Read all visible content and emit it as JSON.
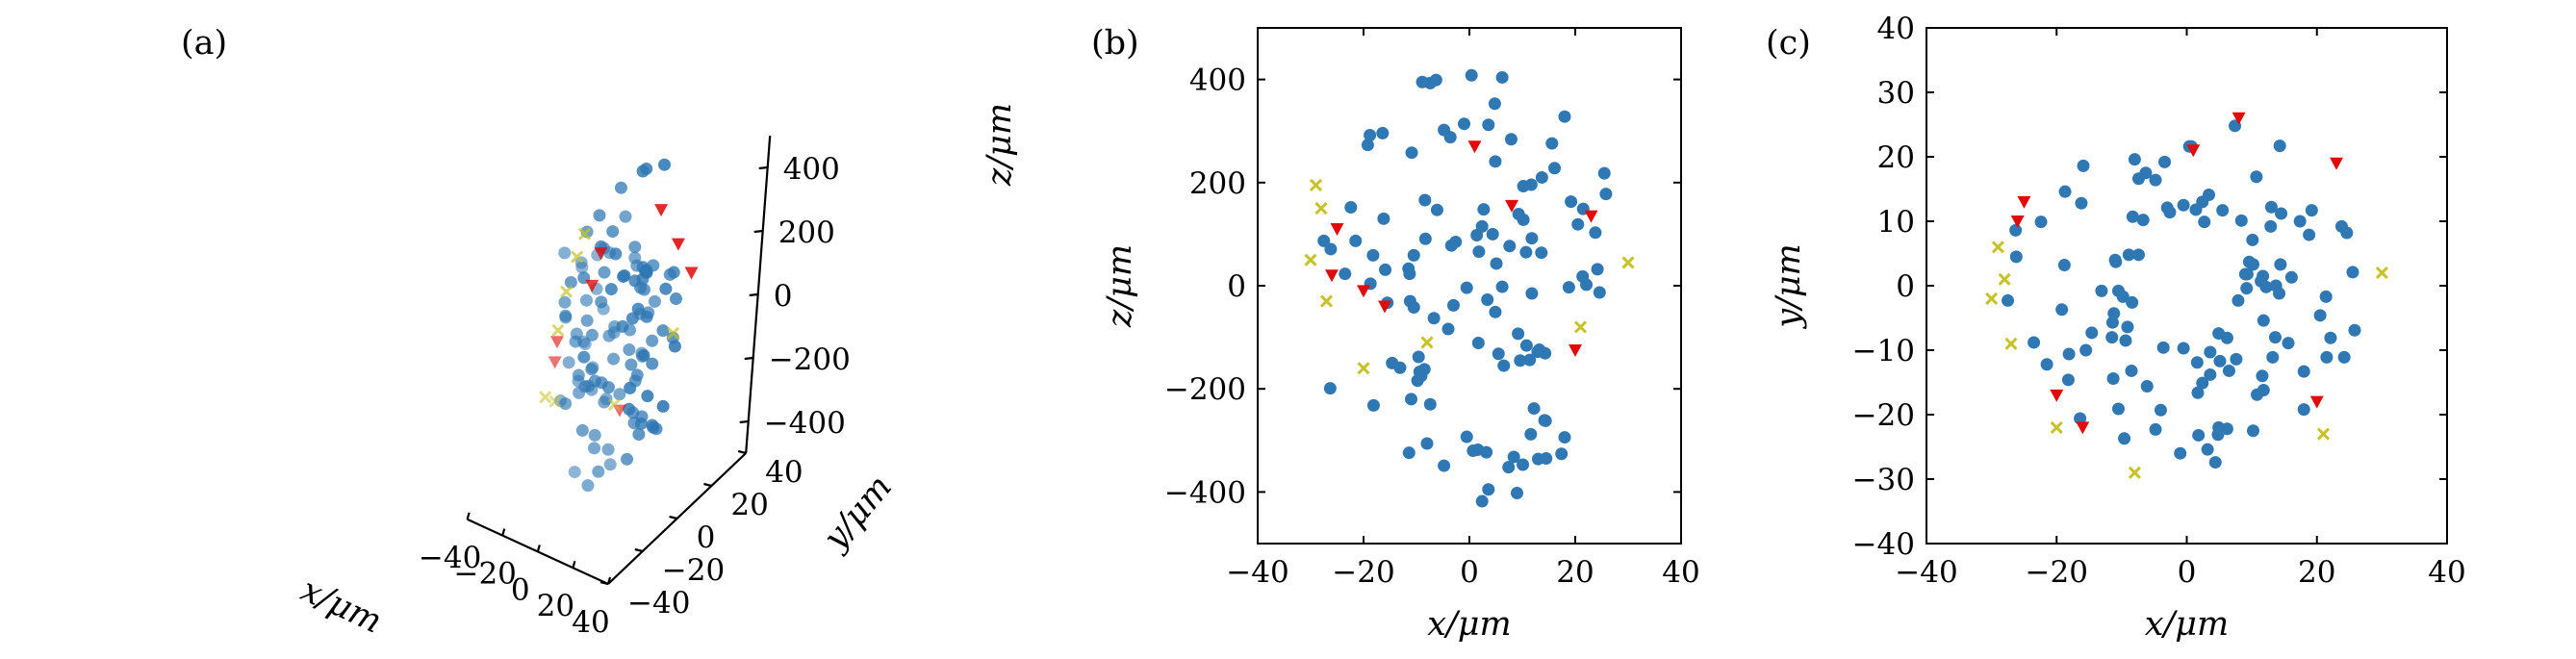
{
  "panel_labels": [
    "(a)",
    "(b)",
    "(c)"
  ],
  "colors": {
    "blue": "#2f78b4",
    "red": "#e00c0c",
    "yellow": "#c7c229",
    "axis": "#000000"
  },
  "chart_data": [
    {
      "type": "scatter",
      "panel": "(a)",
      "projection": "3d",
      "xlabel": "x/μm",
      "ylabel": "y/μm",
      "zlabel": "z/μm",
      "xlim": [
        -40,
        40
      ],
      "ylim": [
        -40,
        40
      ],
      "zlim": [
        -500,
        500
      ],
      "xticks": [
        "−40",
        "−20",
        "0",
        "20",
        "40"
      ],
      "yticks": [
        "−40",
        "−20",
        "0",
        "20",
        "40"
      ],
      "zticks": [
        "−400",
        "−200",
        "0",
        "200",
        "400"
      ],
      "grid": false,
      "series": [
        {
          "marker": "circle",
          "color": "#2f78b4",
          "points": []
        },
        {
          "marker": "triangle-down",
          "color": "#e00c0c",
          "points": []
        },
        {
          "marker": "x",
          "color": "#c7c229",
          "points": []
        }
      ]
    },
    {
      "type": "scatter",
      "panel": "(b)",
      "xlabel": "x/μm",
      "ylabel": "z/μm",
      "xlim": [
        -40,
        40
      ],
      "ylim": [
        -500,
        500
      ],
      "xticks": [
        "−40",
        "−20",
        "0",
        "20",
        "40"
      ],
      "yticks": [
        "−400",
        "−200",
        "0",
        "200",
        "400"
      ],
      "grid": false,
      "series": [
        {
          "marker": "circle",
          "color": "#2f78b4",
          "points": []
        },
        {
          "marker": "triangle-down",
          "color": "#e00c0c",
          "points": []
        },
        {
          "marker": "x",
          "color": "#c7c229",
          "points": []
        }
      ]
    },
    {
      "type": "scatter",
      "panel": "(c)",
      "xlabel": "x/μm",
      "ylabel": "y/μm",
      "xlim": [
        -40,
        40
      ],
      "ylim": [
        -40,
        40
      ],
      "xticks": [
        "−40",
        "−20",
        "0",
        "20",
        "40"
      ],
      "yticks": [
        "−40",
        "−30",
        "−20",
        "−10",
        "0",
        "10",
        "20",
        "30",
        "40"
      ],
      "grid": false,
      "series": [
        {
          "marker": "circle",
          "color": "#2f78b4",
          "points": []
        },
        {
          "marker": "triangle-down",
          "color": "#e00c0c",
          "points": []
        },
        {
          "marker": "x",
          "color": "#c7c229",
          "points": []
        }
      ]
    }
  ]
}
